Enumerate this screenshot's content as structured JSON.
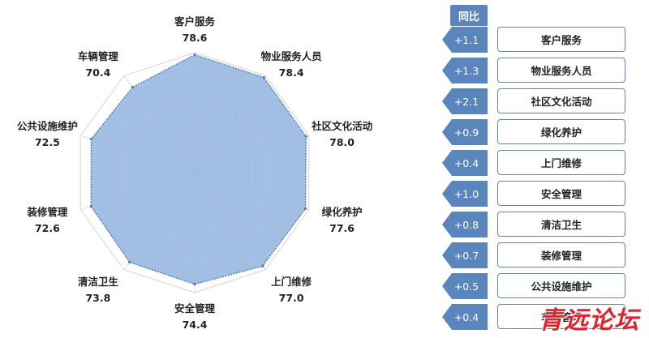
{
  "chart_data": {
    "type": "radar",
    "axes": [
      "客户服务",
      "物业服务人员",
      "社区文化活动",
      "绿化养护",
      "上门维修",
      "安全管理",
      "清洁卫生",
      "装修管理",
      "公共设施维护",
      "车辆管理"
    ],
    "values": [
      78.6,
      78.4,
      78.0,
      77.6,
      77.0,
      74.4,
      73.8,
      72.6,
      72.5,
      70.4
    ],
    "value_labels": [
      "78.6",
      "78.4",
      "78.0",
      "77.6",
      "77.0",
      "74.4",
      "73.8",
      "72.6",
      "72.5",
      "70.4"
    ],
    "rmax": 80,
    "grid_rings": 8,
    "fill_color": "#8fb4de",
    "stroke_color": "#5a7fae"
  },
  "legend": {
    "header": "同比",
    "rows": [
      {
        "change": "+1.1",
        "label": "客户服务"
      },
      {
        "change": "+1.3",
        "label": "物业服务人员"
      },
      {
        "change": "+2.1",
        "label": "社区文化活动"
      },
      {
        "change": "+0.9",
        "label": "绿化养护"
      },
      {
        "change": "+0.4",
        "label": "上门维修"
      },
      {
        "change": "+1.0",
        "label": "安全管理"
      },
      {
        "change": "+0.8",
        "label": "清洁卫生"
      },
      {
        "change": "+0.7",
        "label": "装修管理"
      },
      {
        "change": "+0.5",
        "label": "公共设施维护"
      },
      {
        "change": "+0.4",
        "label": "车辆管理"
      }
    ],
    "accent": "#5b86bd"
  },
  "watermark": "青远论坛"
}
